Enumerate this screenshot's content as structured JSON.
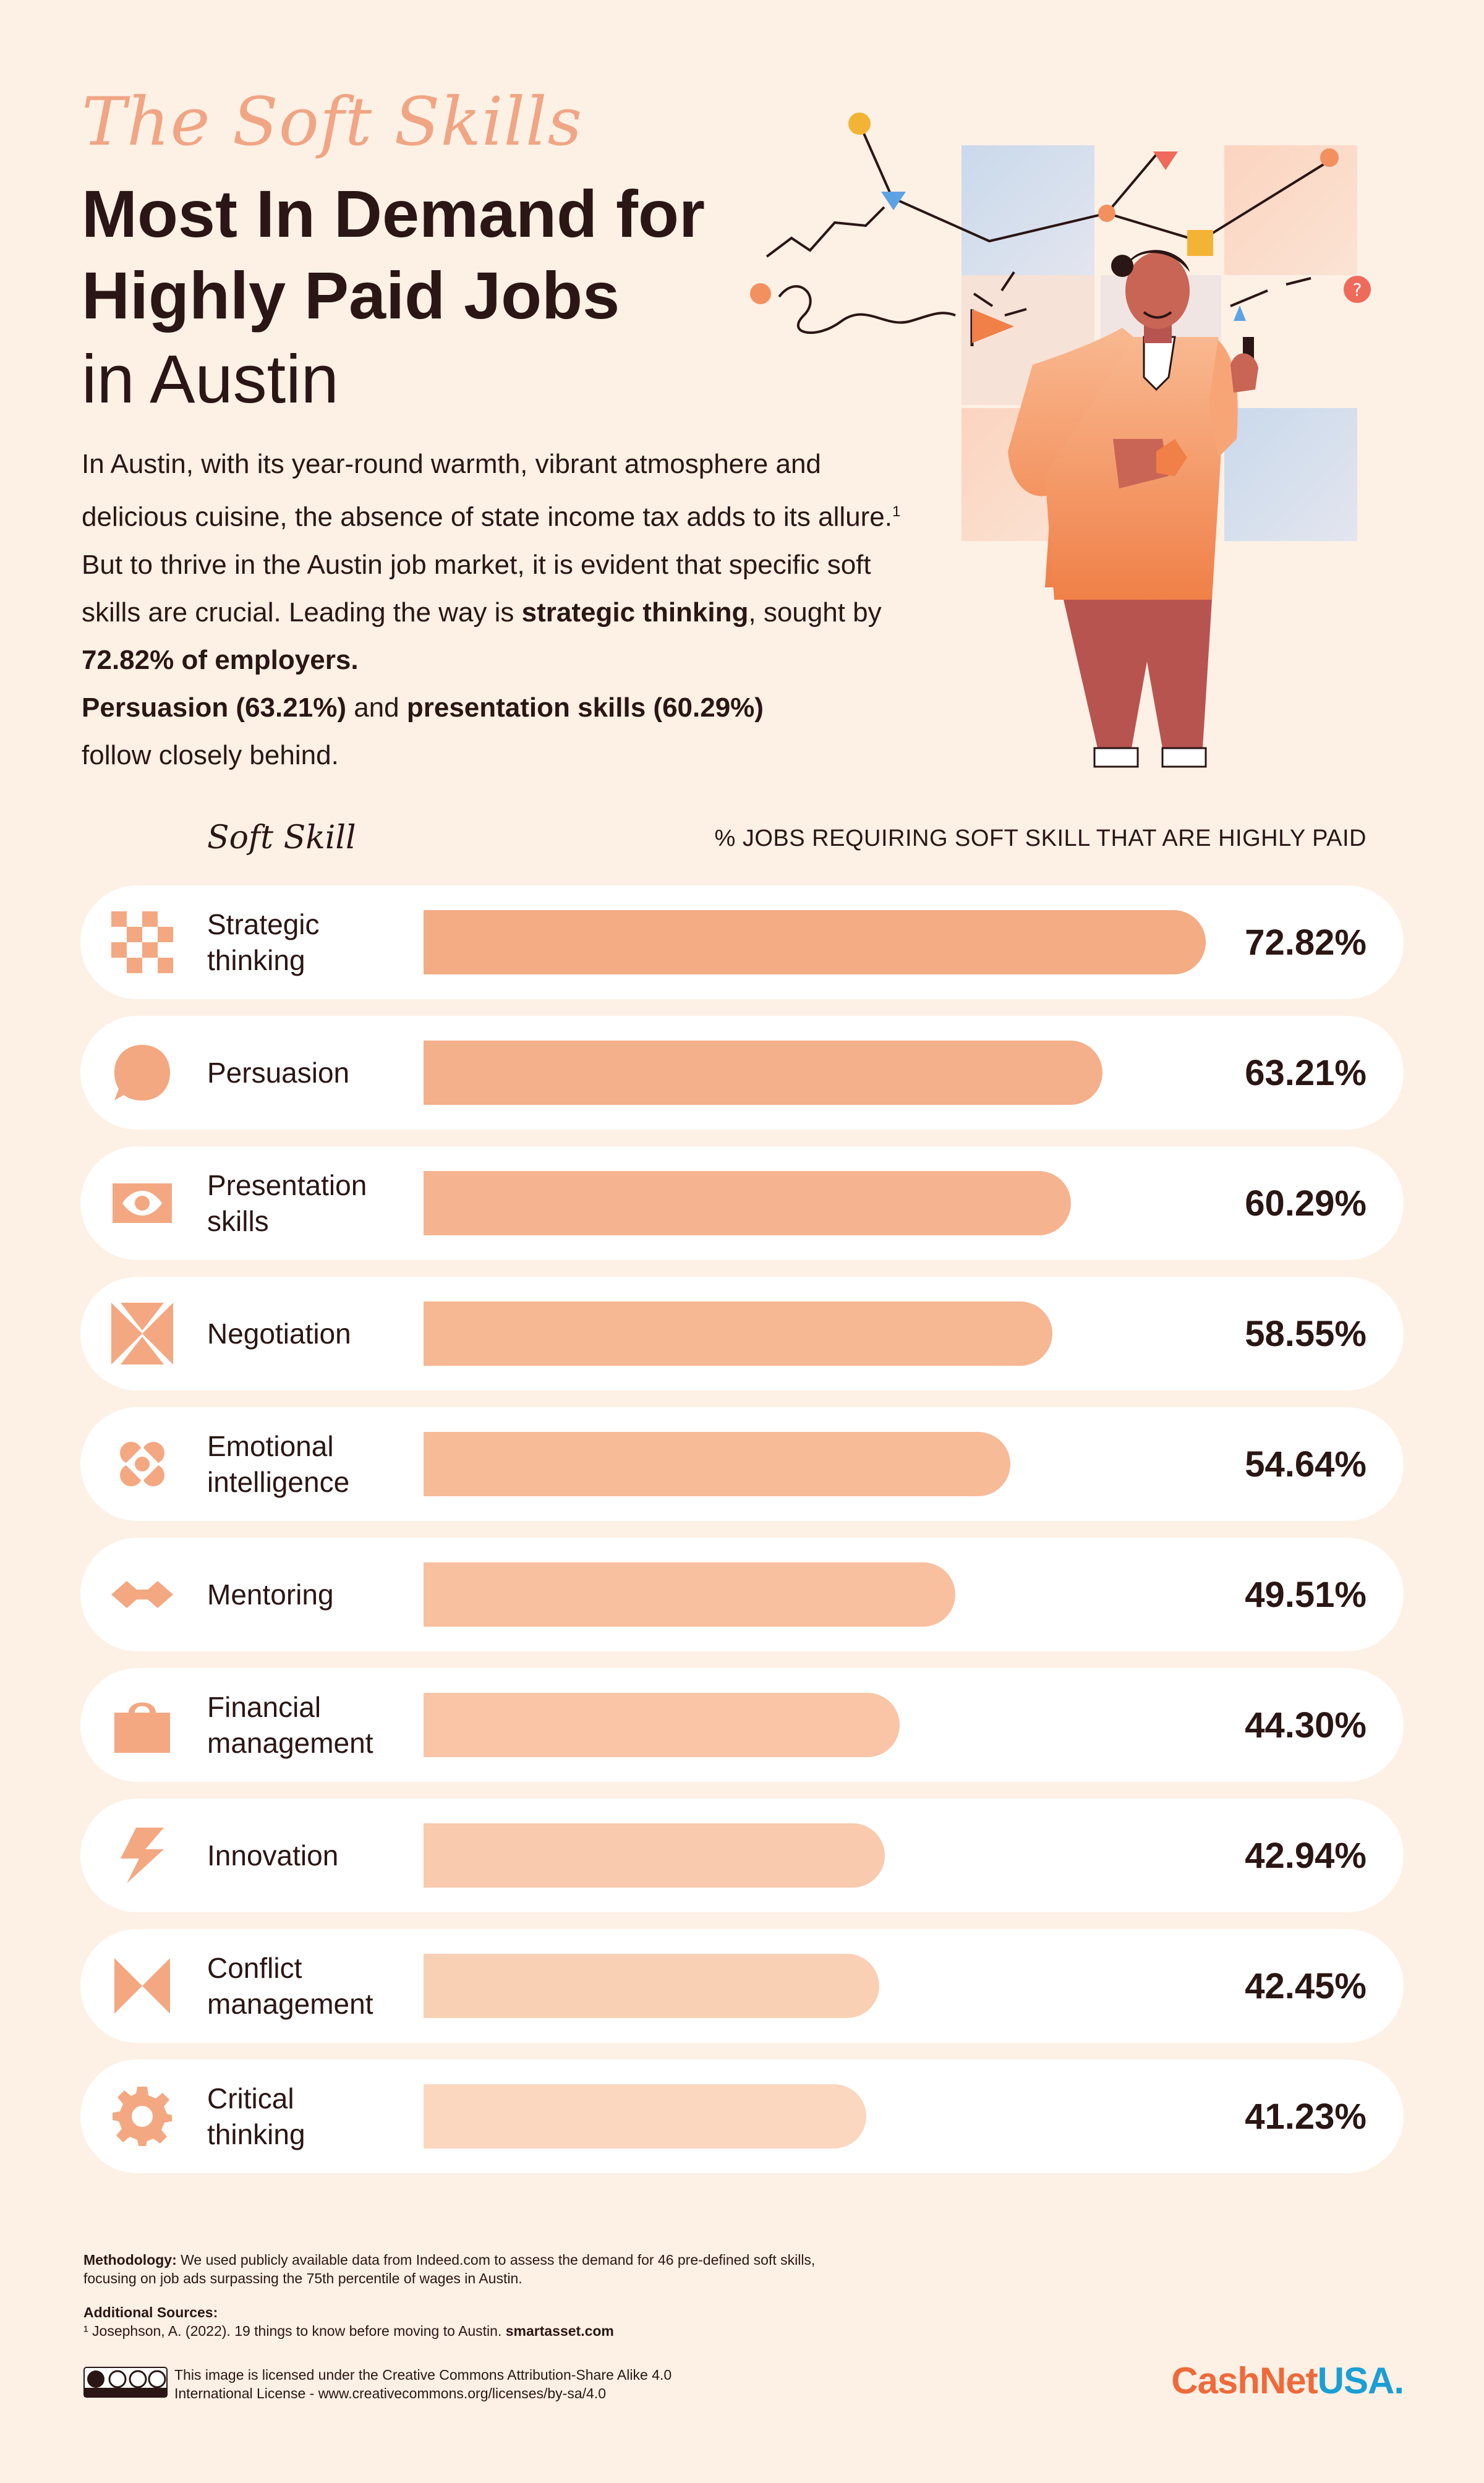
{
  "header": {
    "script_title": "The Soft Skills",
    "title_line1": "Most In Demand for",
    "title_line2": "Highly Paid Jobs",
    "title_city": "in Austin"
  },
  "intro": {
    "p1": "In Austin, with its year-round warmth, vibrant atmosphere and delicious cuisine, the absence of state income tax adds to its allure.",
    "sup": "1",
    "p2": " But to thrive in the Austin job market, it is evident that specific soft skills are crucial. Leading the way is ",
    "b1": "strategic thinking",
    "p3": ", sought by ",
    "b2": "72.82% of employers.",
    "b3": "Persuasion (63.21%)",
    "p4": " and ",
    "b4": "presentation skills (60.29%)",
    "p5": " follow closely behind."
  },
  "chart_data": {
    "type": "bar",
    "orientation": "horizontal",
    "xlabel": "Soft Skill",
    "ylabel": "% JOBS REQUIRING SOFT SKILL THAT ARE HIGHLY PAID",
    "categories": [
      "Strategic thinking",
      "Persuasion",
      "Presentation skills",
      "Negotiation",
      "Emotional intelligence",
      "Mentoring",
      "Financial management",
      "Innovation",
      "Conflict management",
      "Critical thinking"
    ],
    "values": [
      72.82,
      63.21,
      60.29,
      58.55,
      54.64,
      49.51,
      44.3,
      42.94,
      42.45,
      41.23
    ],
    "value_labels": [
      "72.82%",
      "63.21%",
      "60.29%",
      "58.55%",
      "54.64%",
      "49.51%",
      "44.30%",
      "42.94%",
      "42.45%",
      "41.23%"
    ],
    "bar_colors": [
      "#f3ac84",
      "#f4b08a",
      "#f5b48f",
      "#f6b793",
      "#f7bb98",
      "#f8c09f",
      "#f9c5a6",
      "#f9caad",
      "#fad0b5",
      "#fbd7c0"
    ],
    "rows": [
      {
        "label_lines": [
          "Strategic",
          "thinking"
        ],
        "icon": "checker-icon"
      },
      {
        "label_lines": [
          "Persuasion"
        ],
        "icon": "speech-bubble-icon"
      },
      {
        "label_lines": [
          "Presentation",
          "skills"
        ],
        "icon": "eye-icon"
      },
      {
        "label_lines": [
          "Negotiation"
        ],
        "icon": "bowtie-icon"
      },
      {
        "label_lines": [
          "Emotional",
          "intelligence"
        ],
        "icon": "hearts-icon"
      },
      {
        "label_lines": [
          "Mentoring"
        ],
        "icon": "diamonds-icon"
      },
      {
        "label_lines": [
          "Financial",
          "management"
        ],
        "icon": "bag-icon"
      },
      {
        "label_lines": [
          "Innovation"
        ],
        "icon": "lightning-icon"
      },
      {
        "label_lines": [
          "Conflict",
          "management"
        ],
        "icon": "hourglass-icon"
      },
      {
        "label_lines": [
          "Critical",
          "thinking"
        ],
        "icon": "gear-icon"
      }
    ]
  },
  "footer": {
    "methodology_label": "Methodology:",
    "methodology_text": " We used publicly available data from Indeed.com to assess the demand for 46 pre-defined soft skills, focusing on job ads surpassing the 75th percentile of wages in Austin.",
    "sources_label": "Additional Sources:",
    "source_text": "¹ Josephson, A. (2022). 19 things to know before moving to Austin. ",
    "source_site": "smartasset.com",
    "license_text": "This image is licensed under the Creative Commons Attribution-Share Alike 4.0 International License - www.creativecommons.org/licenses/by-sa/4.0",
    "logo_part1": "CashNet",
    "logo_part2": "USA",
    "logo_dot": "."
  },
  "colors": {
    "background": "#fdf0e5",
    "accent": "#f0a584",
    "text": "#2a1614",
    "icon": "#f3a882"
  }
}
